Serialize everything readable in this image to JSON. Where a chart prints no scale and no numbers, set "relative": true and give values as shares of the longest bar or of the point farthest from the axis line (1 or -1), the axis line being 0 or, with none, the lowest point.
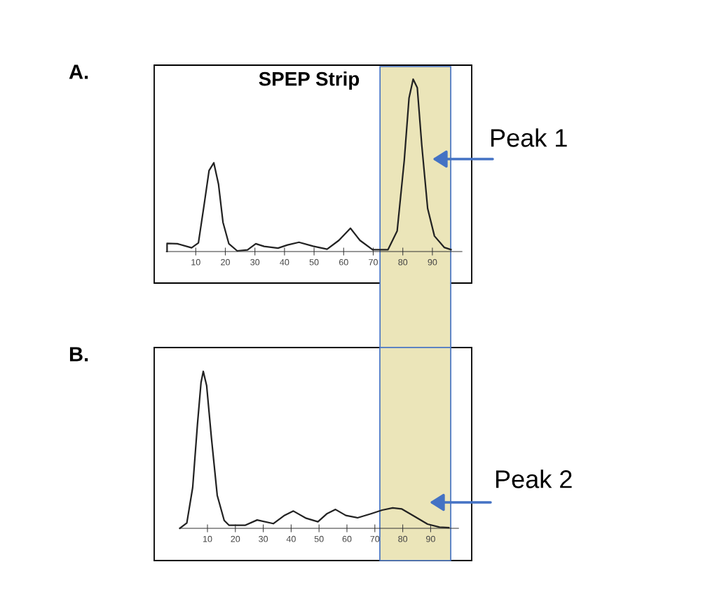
{
  "chart_data": [
    {
      "type": "line",
      "title": "A.",
      "relative": true,
      "color": "#222222",
      "xlim": [
        0,
        100
      ],
      "xticks": [
        10,
        20,
        30,
        40,
        50,
        60,
        70,
        80,
        90
      ],
      "tick_labels": "x",
      "x": [
        0.3,
        0.3,
        3.8,
        8.6,
        10.9,
        12.9,
        14.5,
        16.1,
        17.7,
        19.2,
        21.2,
        24,
        27.5,
        30.3,
        33.1,
        37.8,
        41,
        44.9,
        49.7,
        54.4,
        58.4,
        62.3,
        65.5,
        69.8,
        75,
        78.1,
        80.5,
        82.1,
        83.5,
        84.9,
        86.4,
        88.4,
        90.7,
        94,
        96.3
      ],
      "values": [
        0,
        0.047,
        0.045,
        0.022,
        0.05,
        0.28,
        0.47,
        0.515,
        0.39,
        0.17,
        0.045,
        0.004,
        0.01,
        0.045,
        0.03,
        0.02,
        0.038,
        0.054,
        0.031,
        0.014,
        0.065,
        0.135,
        0.065,
        0.011,
        0.011,
        0.12,
        0.53,
        0.89,
        1.0,
        0.95,
        0.62,
        0.25,
        0.09,
        0.024,
        0.011
      ],
      "annotations": [
        "SPEP Strip",
        "Peak 1"
      ],
      "bands": [
        {
          "axis": "x",
          "from": 72.3,
          "to": 96.2,
          "color": "#ebe5b9"
        }
      ]
    },
    {
      "type": "line",
      "title": "B.",
      "relative": true,
      "color": "#222222",
      "xlim": [
        0,
        100
      ],
      "xticks": [
        10,
        20,
        30,
        40,
        50,
        60,
        70,
        80,
        90
      ],
      "tick_labels": "x",
      "x": [
        0.1,
        2.6,
        4.7,
        6.4,
        7.7,
        8.5,
        9.7,
        11.4,
        13.5,
        16,
        17.7,
        23.6,
        27.8,
        33.6,
        37.4,
        40.8,
        45.4,
        49.6,
        52.9,
        55.9,
        59.6,
        63.8,
        68.8,
        72.6,
        76.4,
        79.7,
        83.9,
        88.9,
        93.2,
        96.5
      ],
      "values": [
        0,
        0.034,
        0.26,
        0.66,
        0.93,
        1.0,
        0.91,
        0.58,
        0.21,
        0.05,
        0.02,
        0.02,
        0.053,
        0.03,
        0.08,
        0.11,
        0.064,
        0.042,
        0.094,
        0.12,
        0.082,
        0.067,
        0.094,
        0.116,
        0.13,
        0.123,
        0.079,
        0.027,
        0.007,
        0.004
      ],
      "annotations": [
        "Peak 2"
      ],
      "bands": [
        {
          "axis": "x",
          "from": 71.8,
          "to": 97.2,
          "color": "#ebe5b9"
        }
      ]
    }
  ]
}
